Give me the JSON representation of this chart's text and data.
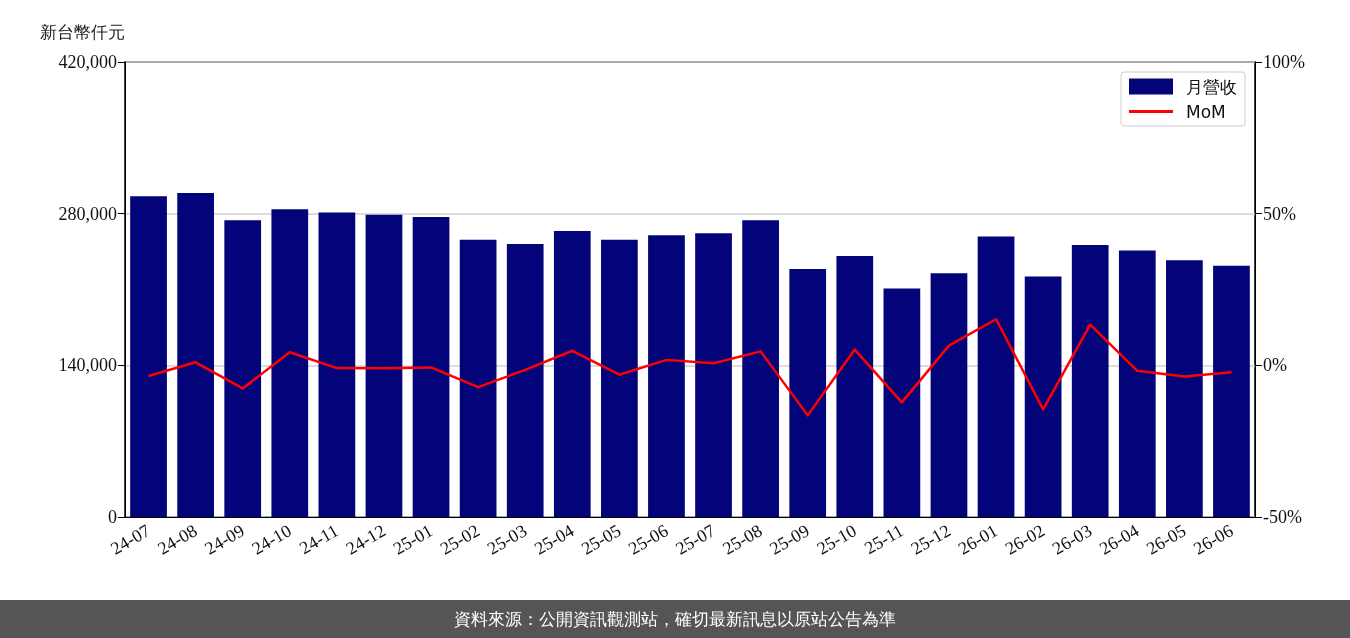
{
  "chart_data": {
    "type": "bar",
    "ylabel": "新台幣仟元",
    "categories": [
      "24-07",
      "24-08",
      "24-09",
      "24-10",
      "24-11",
      "24-12",
      "25-01",
      "25-02",
      "25-03",
      "25-04",
      "25-05",
      "25-06",
      "25-07",
      "25-08",
      "25-09",
      "25-10",
      "25-11",
      "25-12",
      "26-01",
      "26-02",
      "26-03",
      "26-04",
      "26-05",
      "26-06"
    ],
    "series": [
      {
        "name": "月營收",
        "color": "#03037a",
        "values": [
          296000,
          299000,
          274000,
          284000,
          281000,
          279000,
          277000,
          256000,
          252000,
          264000,
          256000,
          260000,
          262000,
          274000,
          229000,
          241000,
          211000,
          225000,
          259000,
          222000,
          251000,
          246000,
          237000,
          232000
        ]
      },
      {
        "name": "MoM",
        "type": "line",
        "axis": "y2",
        "color": "#ff0000",
        "values": [
          -3.5,
          1.0,
          -7.6,
          4.3,
          -0.9,
          -1.0,
          -0.7,
          -7.2,
          -1.5,
          4.8,
          -3.1,
          1.8,
          0.7,
          4.6,
          -16.5,
          5.2,
          -12.2,
          6.5,
          15.2,
          -14.5,
          13.4,
          -1.8,
          -3.7,
          -2.3
        ]
      }
    ],
    "ylim": [
      0,
      420000
    ],
    "yticks": [
      0,
      {
        "value": 140000,
        "label": "140,000"
      },
      {
        "value": 280000,
        "label": "280,000"
      },
      {
        "value": 420000,
        "label": "420,000"
      }
    ],
    "y2lim": [
      -50,
      100
    ],
    "y2ticks": [
      {
        "value": -50,
        "label": "-50%"
      },
      {
        "value": 0,
        "label": "0%"
      },
      {
        "value": 50,
        "label": "50%"
      },
      {
        "value": 100,
        "label": "100%"
      }
    ],
    "grid": "y",
    "legend": "top right",
    "marker": "none",
    "line_style": "solid",
    "annotations": [
      "資料來源：公開資訊觀測站，確切最新訊息以原站公告為準"
    ]
  }
}
